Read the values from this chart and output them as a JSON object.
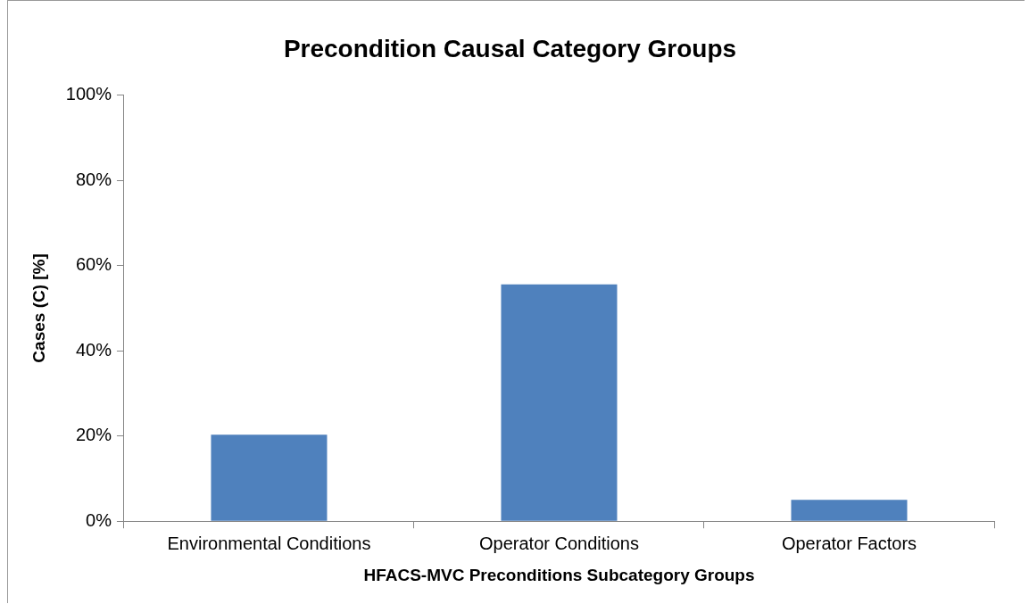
{
  "chart_data": {
    "type": "bar",
    "title": "Precondition Causal Category Groups",
    "xlabel": "HFACS-MVC Preconditions Subcategory Groups",
    "ylabel": "Cases (C) [%]",
    "categories": [
      "Environmental Conditions",
      "Operator Conditions",
      "Operator Factors"
    ],
    "values": [
      20.3,
      55.6,
      5.0
    ],
    "color": "#4f81bd",
    "ylim": [
      0,
      100
    ],
    "yticks": [
      {
        "value": 0,
        "label": "0%"
      },
      {
        "value": 20,
        "label": "20%"
      },
      {
        "value": 40,
        "label": "40%"
      },
      {
        "value": 60,
        "label": "60%"
      },
      {
        "value": 80,
        "label": "80%"
      },
      {
        "value": 100,
        "label": "100%"
      }
    ],
    "grid": false,
    "legend": false
  }
}
